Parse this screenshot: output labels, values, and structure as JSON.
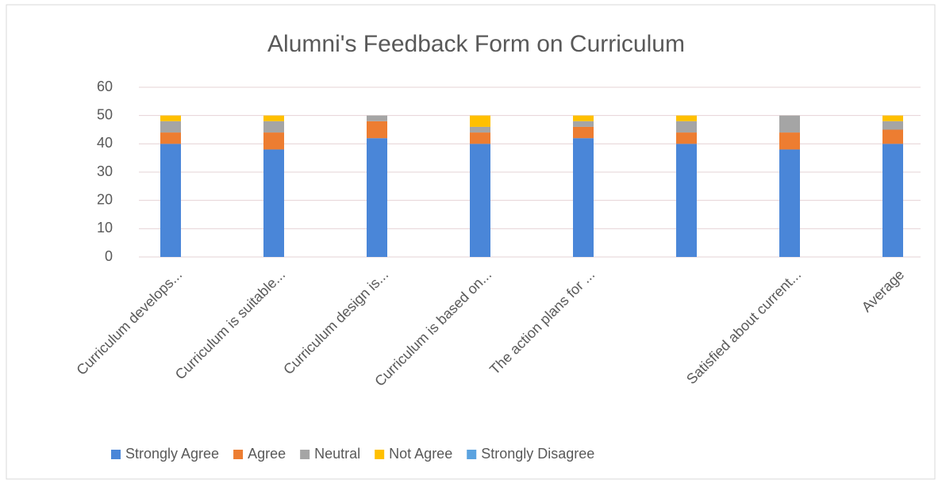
{
  "chart_data": {
    "type": "stacked_bar",
    "title": "Alumni's Feedback Form on Curriculum",
    "categories": [
      "Curriculum develops...",
      "Curriculum is suitable...",
      "Curriculum design is...",
      "Curriculum is based on...",
      "The action plans for ...",
      null,
      "Satisfied about current...",
      "Average"
    ],
    "series": [
      {
        "name": "Strongly Agree",
        "color": "#4a86d8",
        "values": [
          40,
          38,
          42,
          40,
          42,
          40,
          38,
          40
        ]
      },
      {
        "name": "Agree",
        "color": "#ed7d31",
        "values": [
          4,
          6,
          6,
          4,
          4,
          4,
          6,
          5
        ]
      },
      {
        "name": "Neutral",
        "color": "#a5a5a5",
        "values": [
          4,
          4,
          2,
          2,
          2,
          4,
          6,
          3
        ]
      },
      {
        "name": "Not Agree",
        "color": "#ffc000",
        "values": [
          2,
          2,
          0,
          4,
          2,
          2,
          0,
          2
        ]
      },
      {
        "name": "Strongly Disagree",
        "color": "#5ba3e0",
        "values": [
          0,
          0,
          0,
          0,
          0,
          0,
          0,
          0
        ]
      }
    ],
    "ylim": [
      0,
      60
    ],
    "yticks": [
      0,
      10,
      20,
      30,
      40,
      50,
      60
    ],
    "grid": true,
    "legend": "bottom"
  }
}
